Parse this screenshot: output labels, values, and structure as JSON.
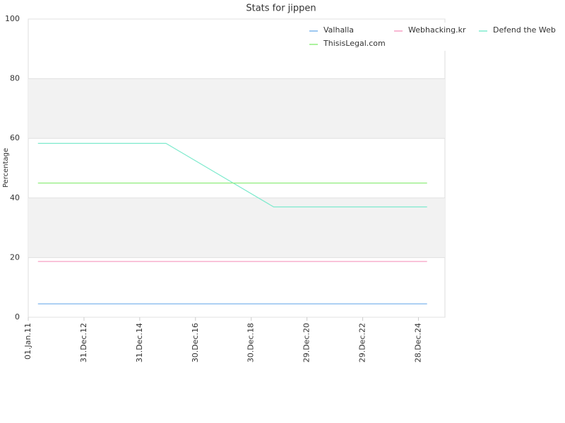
{
  "chart_data": {
    "type": "line",
    "title": "Stats for jippen",
    "y_label": "Percentage",
    "x": [
      "2011-05-08",
      "2015-12-10",
      "2019-10-20",
      "2025-04-20"
    ],
    "xlim": [
      "2011-01-01",
      "2025-12-10"
    ],
    "xticks": [
      {
        "value": "2011-01-01",
        "label": "01.Jan.11"
      },
      {
        "value": "2012-12-31",
        "label": "31.Dec.12"
      },
      {
        "value": "2014-12-31",
        "label": "31.Dec.14"
      },
      {
        "value": "2016-12-30",
        "label": "30.Dec.16"
      },
      {
        "value": "2018-12-30",
        "label": "30.Dec.18"
      },
      {
        "value": "2020-12-29",
        "label": "29.Dec.20"
      },
      {
        "value": "2022-12-29",
        "label": "29.Dec.22"
      },
      {
        "value": "2024-12-28",
        "label": "28.Dec.24"
      }
    ],
    "ylim": [
      0,
      100
    ],
    "yticks": [
      0,
      20,
      40,
      60,
      80,
      100
    ],
    "grid": true,
    "series": [
      {
        "name": "Valhalla",
        "color": "#7cb5ec",
        "values": [
          4.5,
          4.5,
          4.5,
          4.5
        ]
      },
      {
        "name": "Webhacking.kr",
        "color": "#f7a1c4",
        "values": [
          18.7,
          18.7,
          18.7,
          18.7
        ]
      },
      {
        "name": "Defend the Web",
        "color": "#7eeacd",
        "values": [
          58.3,
          58.3,
          37,
          37
        ]
      },
      {
        "name": "ThisisLegal.com",
        "color": "#90ed7d",
        "values": [
          45,
          45,
          45,
          45
        ]
      }
    ]
  }
}
